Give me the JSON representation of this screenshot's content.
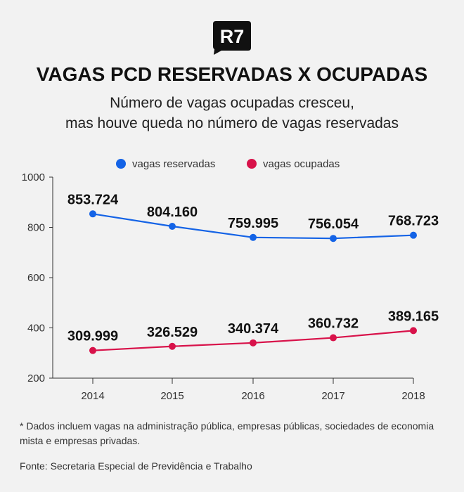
{
  "brand": {
    "logo_text": "R7"
  },
  "title": "VAGAS PCD RESERVADAS X OCUPADAS",
  "subtitle_lines": [
    "Número de vagas ocupadas cresceu,",
    "mas houve queda no número de vagas reservadas"
  ],
  "chart_data": {
    "type": "line",
    "x": [
      "2014",
      "2015",
      "2016",
      "2017",
      "2018"
    ],
    "yticks": [
      "1000",
      "800",
      "600",
      "400",
      "200"
    ],
    "ylim": [
      200,
      1000
    ],
    "legend_position": "top",
    "grid": false,
    "series": [
      {
        "name": "vagas reservadas",
        "color": "#1463e6",
        "values": [
          853.724,
          804.16,
          759.995,
          756.054,
          768.723
        ],
        "labels": [
          "853.724",
          "804.160",
          "759.995",
          "756.054",
          "768.723"
        ]
      },
      {
        "name": "vagas ocupadas",
        "color": "#d8124a",
        "values": [
          309.999,
          326.529,
          340.374,
          360.732,
          389.165
        ],
        "labels": [
          "309.999",
          "326.529",
          "340.374",
          "360.732",
          "389.165"
        ]
      }
    ]
  },
  "footnote": "* Dados incluem vagas na administração pública, empresas públicas, sociedades de economia mista e empresas privadas.",
  "source": "Fonte: Secretaria Especial de Previdência e Trabalho"
}
